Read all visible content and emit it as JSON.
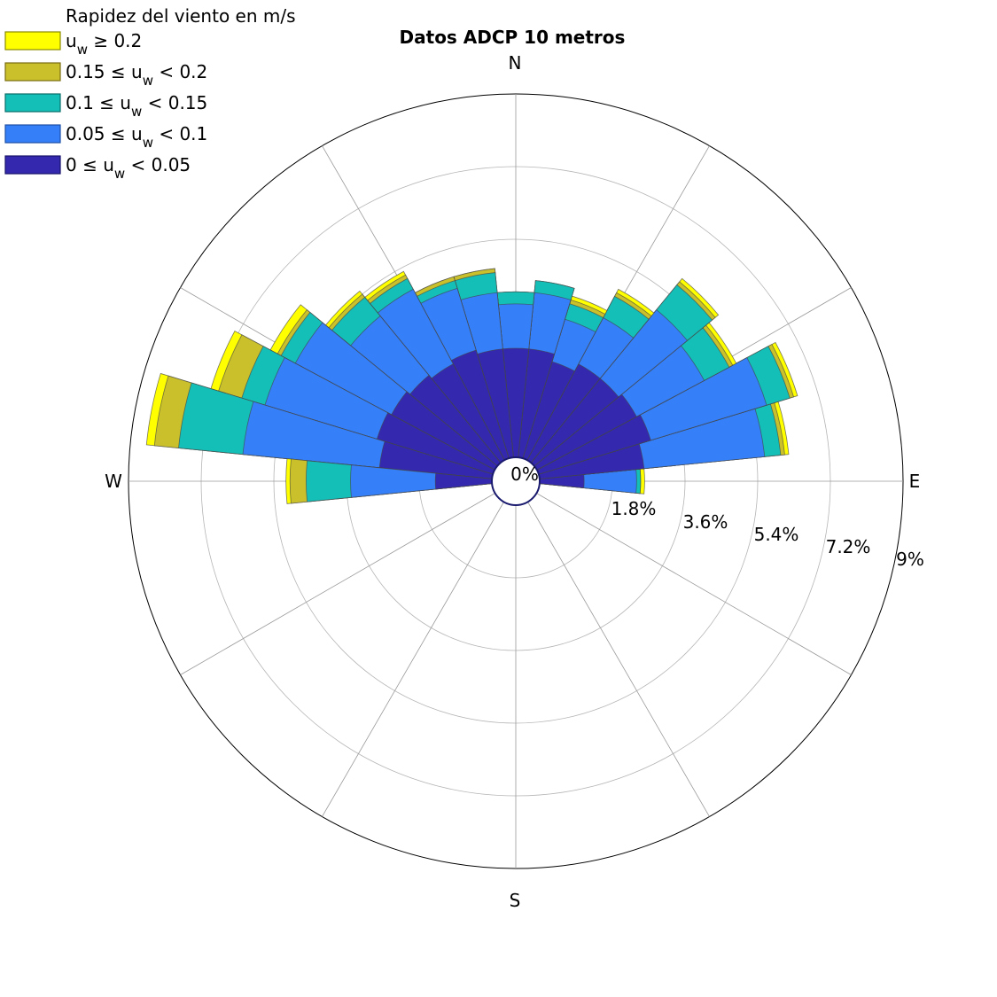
{
  "chart_data": {
    "type": "polar-stacked-bar",
    "title": "Datos ADCP 10 metros",
    "legend_title": "Rapidez del viento en m/s",
    "legend_position": "top-left",
    "legend": [
      {
        "name": "u_w ≥ 0.2",
        "color": "#ffff00"
      },
      {
        "name": "0.15 ≤ u_w < 0.2",
        "color": "#c9c02c"
      },
      {
        "name": "0.1 ≤ u_w < 0.15",
        "color": "#14bfb8"
      },
      {
        "name": "0.05 ≤ u_w < 0.1",
        "color": "#357ff8"
      },
      {
        "name": "0 ≤ u_w < 0.05",
        "color": "#3429ae"
      }
    ],
    "direction_labels": [
      "N",
      "E",
      "S",
      "W"
    ],
    "radial_ticks": [
      "0%",
      "1.8%",
      "3.6%",
      "5.4%",
      "7.2%",
      "9%"
    ],
    "radial_max": 9,
    "center_label": "0%",
    "grid": true,
    "bins": [
      {
        "dir": 90,
        "values": [
          1.1,
          2.4,
          2.5,
          2.5,
          2.6
        ]
      },
      {
        "dir": 78.75,
        "values": [
          2.6,
          5.6,
          6.0,
          6.1,
          6.2
        ]
      },
      {
        "dir": 67.5,
        "values": [
          2.9,
          5.9,
          6.5,
          6.6,
          6.7
        ]
      },
      {
        "dir": 56.25,
        "values": [
          2.8,
          4.7,
          5.4,
          5.5,
          5.6
        ]
      },
      {
        "dir": 45,
        "values": [
          2.7,
          4.9,
          5.7,
          5.8,
          5.9
        ]
      },
      {
        "dir": 33.75,
        "values": [
          2.7,
          4.0,
          4.6,
          4.7,
          4.8
        ]
      },
      {
        "dir": 22.5,
        "values": [
          2.5,
          3.6,
          4.0,
          4.1,
          4.2
        ]
      },
      {
        "dir": 11.25,
        "values": [
          2.7,
          4.1,
          4.4,
          4.4,
          4.4
        ]
      },
      {
        "dir": 0,
        "values": [
          2.7,
          3.8,
          4.1,
          4.1,
          4.1
        ]
      },
      {
        "dir": 348.75,
        "values": [
          2.7,
          4.1,
          4.6,
          4.7,
          4.7
        ]
      },
      {
        "dir": 337.5,
        "values": [
          2.8,
          4.4,
          4.6,
          4.7,
          4.7
        ]
      },
      {
        "dir": 326.25,
        "values": [
          2.7,
          4.8,
          5.1,
          5.2,
          5.3
        ]
      },
      {
        "dir": 315,
        "values": [
          2.8,
          4.7,
          5.3,
          5.4,
          5.5
        ]
      },
      {
        "dir": 303.75,
        "values": [
          2.9,
          5.6,
          6.0,
          6.1,
          6.3
        ]
      },
      {
        "dir": 292.5,
        "values": [
          3.0,
          5.9,
          6.5,
          7.1,
          7.3
        ]
      },
      {
        "dir": 281.25,
        "values": [
          2.8,
          6.2,
          7.8,
          8.4,
          8.6
        ]
      },
      {
        "dir": 270,
        "values": [
          1.4,
          3.5,
          4.6,
          5.0,
          5.1
        ]
      }
    ]
  }
}
